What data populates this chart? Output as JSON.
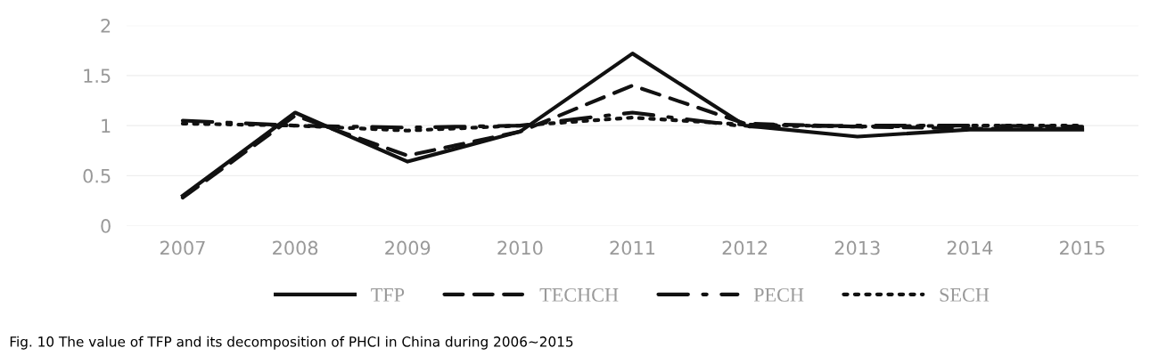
{
  "chart_data": {
    "type": "line",
    "categories": [
      "2007",
      "2008",
      "2009",
      "2010",
      "2011",
      "2012",
      "2013",
      "2014",
      "2015"
    ],
    "series": [
      {
        "name": "TFP",
        "color": "#111111",
        "line_style": "solid",
        "values": [
          0.3,
          1.13,
          0.64,
          0.94,
          1.72,
          1.0,
          0.89,
          0.96,
          0.96
        ]
      },
      {
        "name": "TECHCH",
        "color": "#111111",
        "line_style": "dashed",
        "values": [
          0.28,
          1.1,
          0.7,
          0.94,
          1.4,
          1.02,
          0.99,
          0.97,
          0.97
        ]
      },
      {
        "name": "PECH",
        "color": "#111111",
        "line_style": "dashdot",
        "values": [
          1.05,
          1.0,
          0.98,
          1.0,
          1.13,
          0.99,
          1.0,
          1.0,
          0.99
        ]
      },
      {
        "name": "SECH",
        "color": "#111111",
        "line_style": "dotted",
        "values": [
          1.02,
          1.0,
          0.95,
          1.0,
          1.08,
          1.01,
          0.99,
          1.0,
          1.0
        ]
      }
    ],
    "ylim": [
      0,
      2
    ],
    "yticks": [
      0,
      0.5,
      1,
      1.5,
      2
    ],
    "grid": "y",
    "legend": "bottom",
    "marker": "none",
    "annotations": [
      "Fig. 10 The value of TFP and its decomposition of PHCI in China during 2006~2015"
    ]
  }
}
